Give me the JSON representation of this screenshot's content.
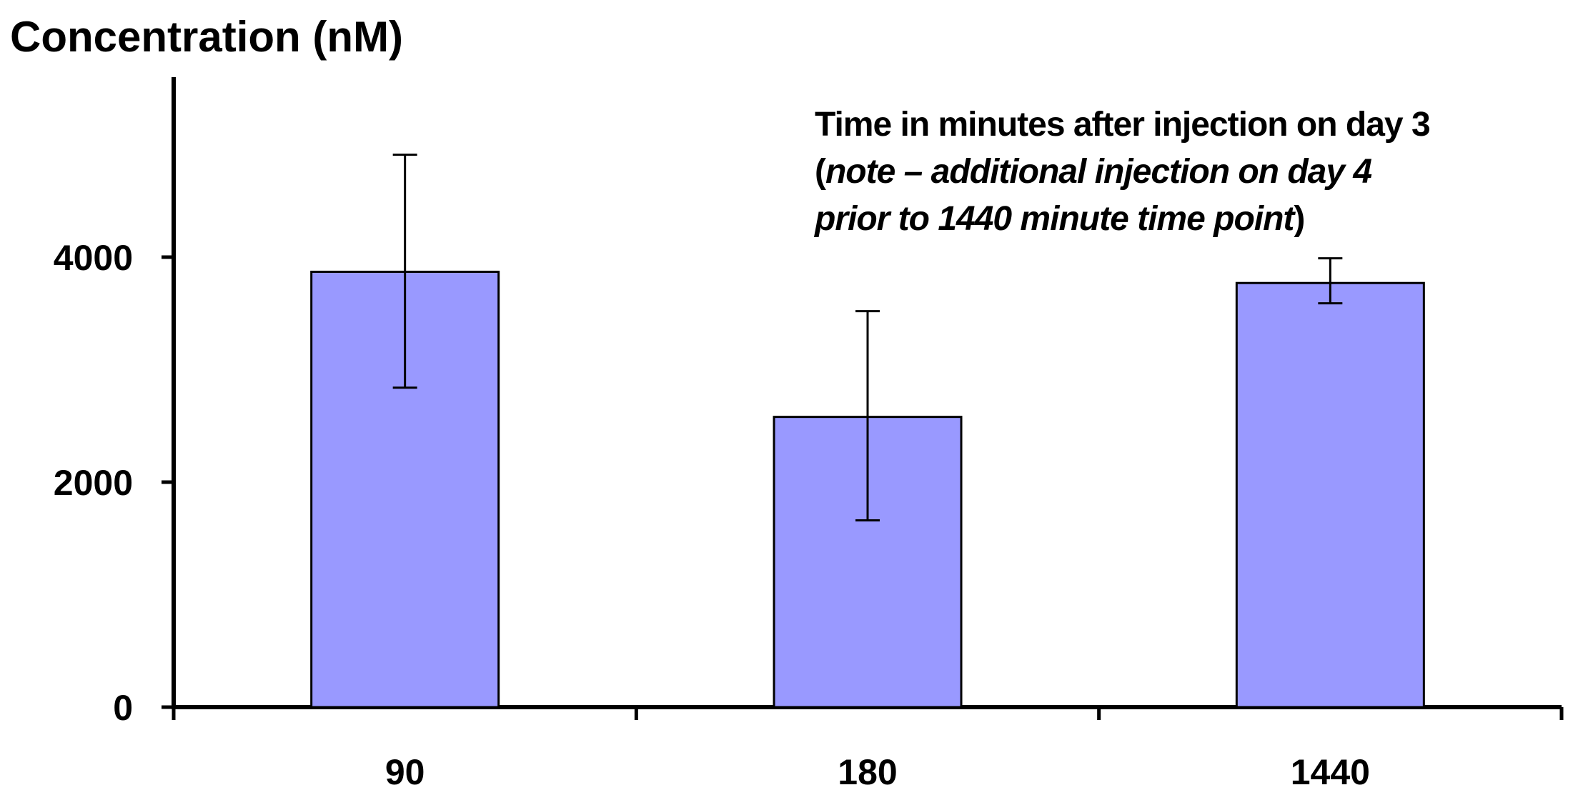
{
  "chart_data": {
    "type": "bar",
    "ylabel": "Concentration (nM)",
    "xlabel": "",
    "categories": [
      "90",
      "180",
      "1440"
    ],
    "values": [
      3870,
      2580,
      3770
    ],
    "errors": {
      "low": [
        2840,
        1660,
        3590
      ],
      "high": [
        4910,
        3520,
        3990
      ]
    },
    "ylim": [
      0,
      5600
    ],
    "yticks": [
      0,
      2000,
      4000
    ],
    "ytick_labels": [
      "0",
      "2000",
      "4000"
    ],
    "bar_color": "#9999ff",
    "bar_edge_color": "#000000",
    "annotation": {
      "line1": "Time in minutes after injection on day 3",
      "line2_open": "(",
      "line2_italic": "note – additional injection on day 4",
      "line3_italic": "prior to 1440 minute time point",
      "line3_close": ")"
    },
    "grid": false,
    "legend": "none"
  }
}
